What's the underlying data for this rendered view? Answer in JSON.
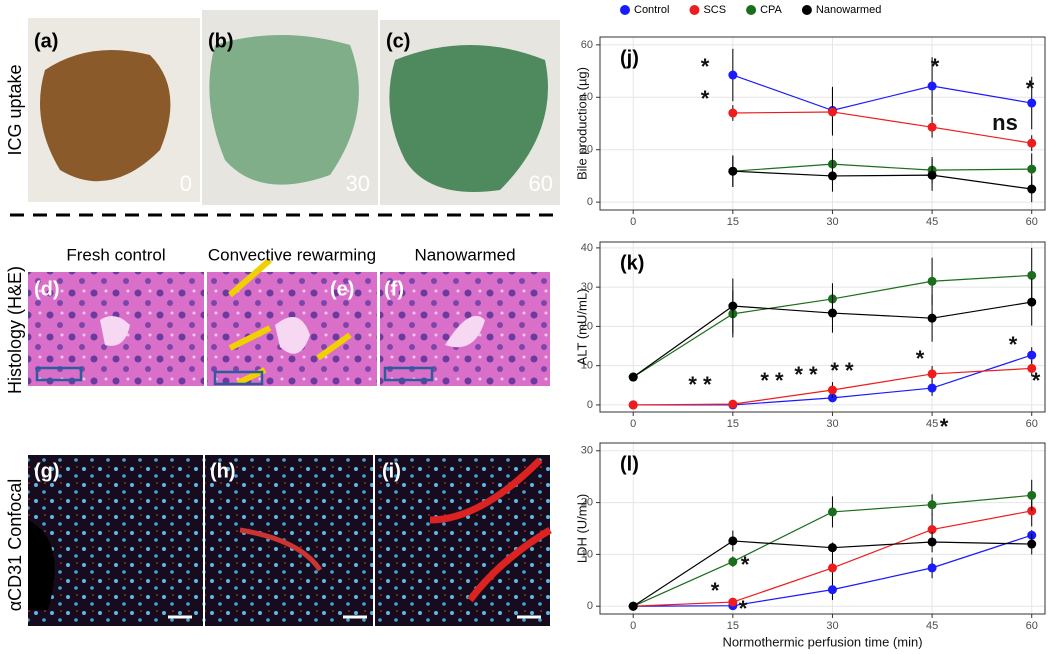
{
  "images": {
    "row_labels": [
      "ICG uptake",
      "Histology (H&E)",
      "αCD31 Confocal"
    ],
    "column_labels": [
      "Fresh control",
      "Convective rewarming",
      "Nanowarmed"
    ],
    "panels": [
      {
        "letter": "(a)",
        "time": "0"
      },
      {
        "letter": "(b)",
        "time": "30"
      },
      {
        "letter": "(c)",
        "time": "60"
      },
      {
        "letter": "(d)"
      },
      {
        "letter": "(e)"
      },
      {
        "letter": "(f)"
      },
      {
        "letter": "(g)"
      },
      {
        "letter": "(h)"
      },
      {
        "letter": "(i)"
      }
    ]
  },
  "chart_data": [
    {
      "type": "line",
      "panel": "(j)",
      "y_label": "Bile production (µg)",
      "x": [
        15,
        30,
        45,
        60
      ],
      "xlim": [
        -5,
        62
      ],
      "xticks": [
        0,
        15,
        30,
        45,
        60
      ],
      "ylim": [
        -3,
        63
      ],
      "yticks": [
        0,
        20,
        40,
        60
      ],
      "grid": true,
      "series": [
        {
          "name": "Control",
          "color": "#1a1aff",
          "values": [
            48.5,
            35,
            44.3,
            37.8
          ],
          "errors": [
            10,
            9,
            11,
            10
          ]
        },
        {
          "name": "SCS",
          "color": "#ee1c1c",
          "values": [
            34,
            34.4,
            28.6,
            22.5
          ],
          "errors": [
            3,
            9,
            4,
            3
          ]
        },
        {
          "name": "CPA",
          "color": "#1b6e1b",
          "values": [
            11.8,
            14.5,
            12.2,
            12.6
          ],
          "errors": [
            6,
            6,
            5,
            6
          ]
        },
        {
          "name": "Nanowarmed",
          "color": "#000000",
          "values": [
            11.8,
            10,
            10.3,
            5
          ],
          "errors": [
            6,
            6,
            6,
            5
          ]
        }
      ],
      "annotations": [
        "*",
        "*",
        "*",
        "*",
        "ns"
      ]
    },
    {
      "type": "line",
      "panel": "(k)",
      "y_label": "ALT (mU/mL)",
      "x": [
        0,
        15,
        30,
        45,
        60
      ],
      "xlim": [
        -5,
        62
      ],
      "xticks": [
        0,
        15,
        30,
        45,
        60
      ],
      "ylim": [
        -1.8,
        41.5
      ],
      "yticks": [
        0,
        10,
        20,
        30,
        40
      ],
      "grid": true,
      "series": [
        {
          "name": "Control",
          "color": "#1a1aff",
          "values": [
            0,
            0,
            1.8,
            4.3,
            12.7
          ],
          "errors": [
            0,
            0,
            1,
            2,
            2
          ]
        },
        {
          "name": "SCS",
          "color": "#ee1c1c",
          "values": [
            0,
            0.2,
            3.8,
            7.9,
            9.3
          ],
          "errors": [
            0,
            0.5,
            2,
            2,
            2
          ]
        },
        {
          "name": "CPA",
          "color": "#1b6e1b",
          "values": [
            7.1,
            23.2,
            27,
            31.5,
            33
          ],
          "errors": [
            0,
            6,
            4,
            6,
            7
          ]
        },
        {
          "name": "Nanowarmed",
          "color": "#000000",
          "values": [
            7.1,
            25.2,
            23.4,
            22.1,
            26.2
          ],
          "errors": [
            0,
            7,
            5,
            6,
            6
          ]
        }
      ],
      "annotations": [
        "* *",
        "* *",
        "* *",
        "* *",
        "*",
        "*",
        "*",
        "*"
      ]
    },
    {
      "type": "line",
      "panel": "(l)",
      "y_label": "LDH (U/mL)",
      "x_label": "Normothermic perfusion time (min)",
      "x": [
        0,
        15,
        30,
        45,
        60
      ],
      "xlim": [
        -5,
        62
      ],
      "xticks": [
        0,
        15,
        30,
        45,
        60
      ],
      "ylim": [
        -1.5,
        31.5
      ],
      "yticks": [
        0,
        10,
        20,
        30
      ],
      "grid": true,
      "series": [
        {
          "name": "Control",
          "color": "#1a1aff",
          "values": [
            0,
            0.1,
            3.2,
            7.4,
            13.7
          ],
          "errors": [
            0,
            0,
            2,
            2,
            1
          ]
        },
        {
          "name": "SCS",
          "color": "#ee1c1c",
          "values": [
            0,
            0.8,
            7.4,
            14.8,
            18.4
          ],
          "errors": [
            0,
            0.5,
            3,
            3,
            3
          ]
        },
        {
          "name": "CPA",
          "color": "#1b6e1b",
          "values": [
            0,
            8.6,
            18.2,
            19.6,
            21.4
          ],
          "errors": [
            0,
            1,
            3,
            2,
            3
          ]
        },
        {
          "name": "Nanowarmed",
          "color": "#000000",
          "values": [
            0,
            12.6,
            11.3,
            12.4,
            12
          ],
          "errors": [
            0,
            2,
            1,
            2,
            2
          ]
        }
      ],
      "annotations": [
        "*",
        "*",
        "*"
      ]
    }
  ]
}
